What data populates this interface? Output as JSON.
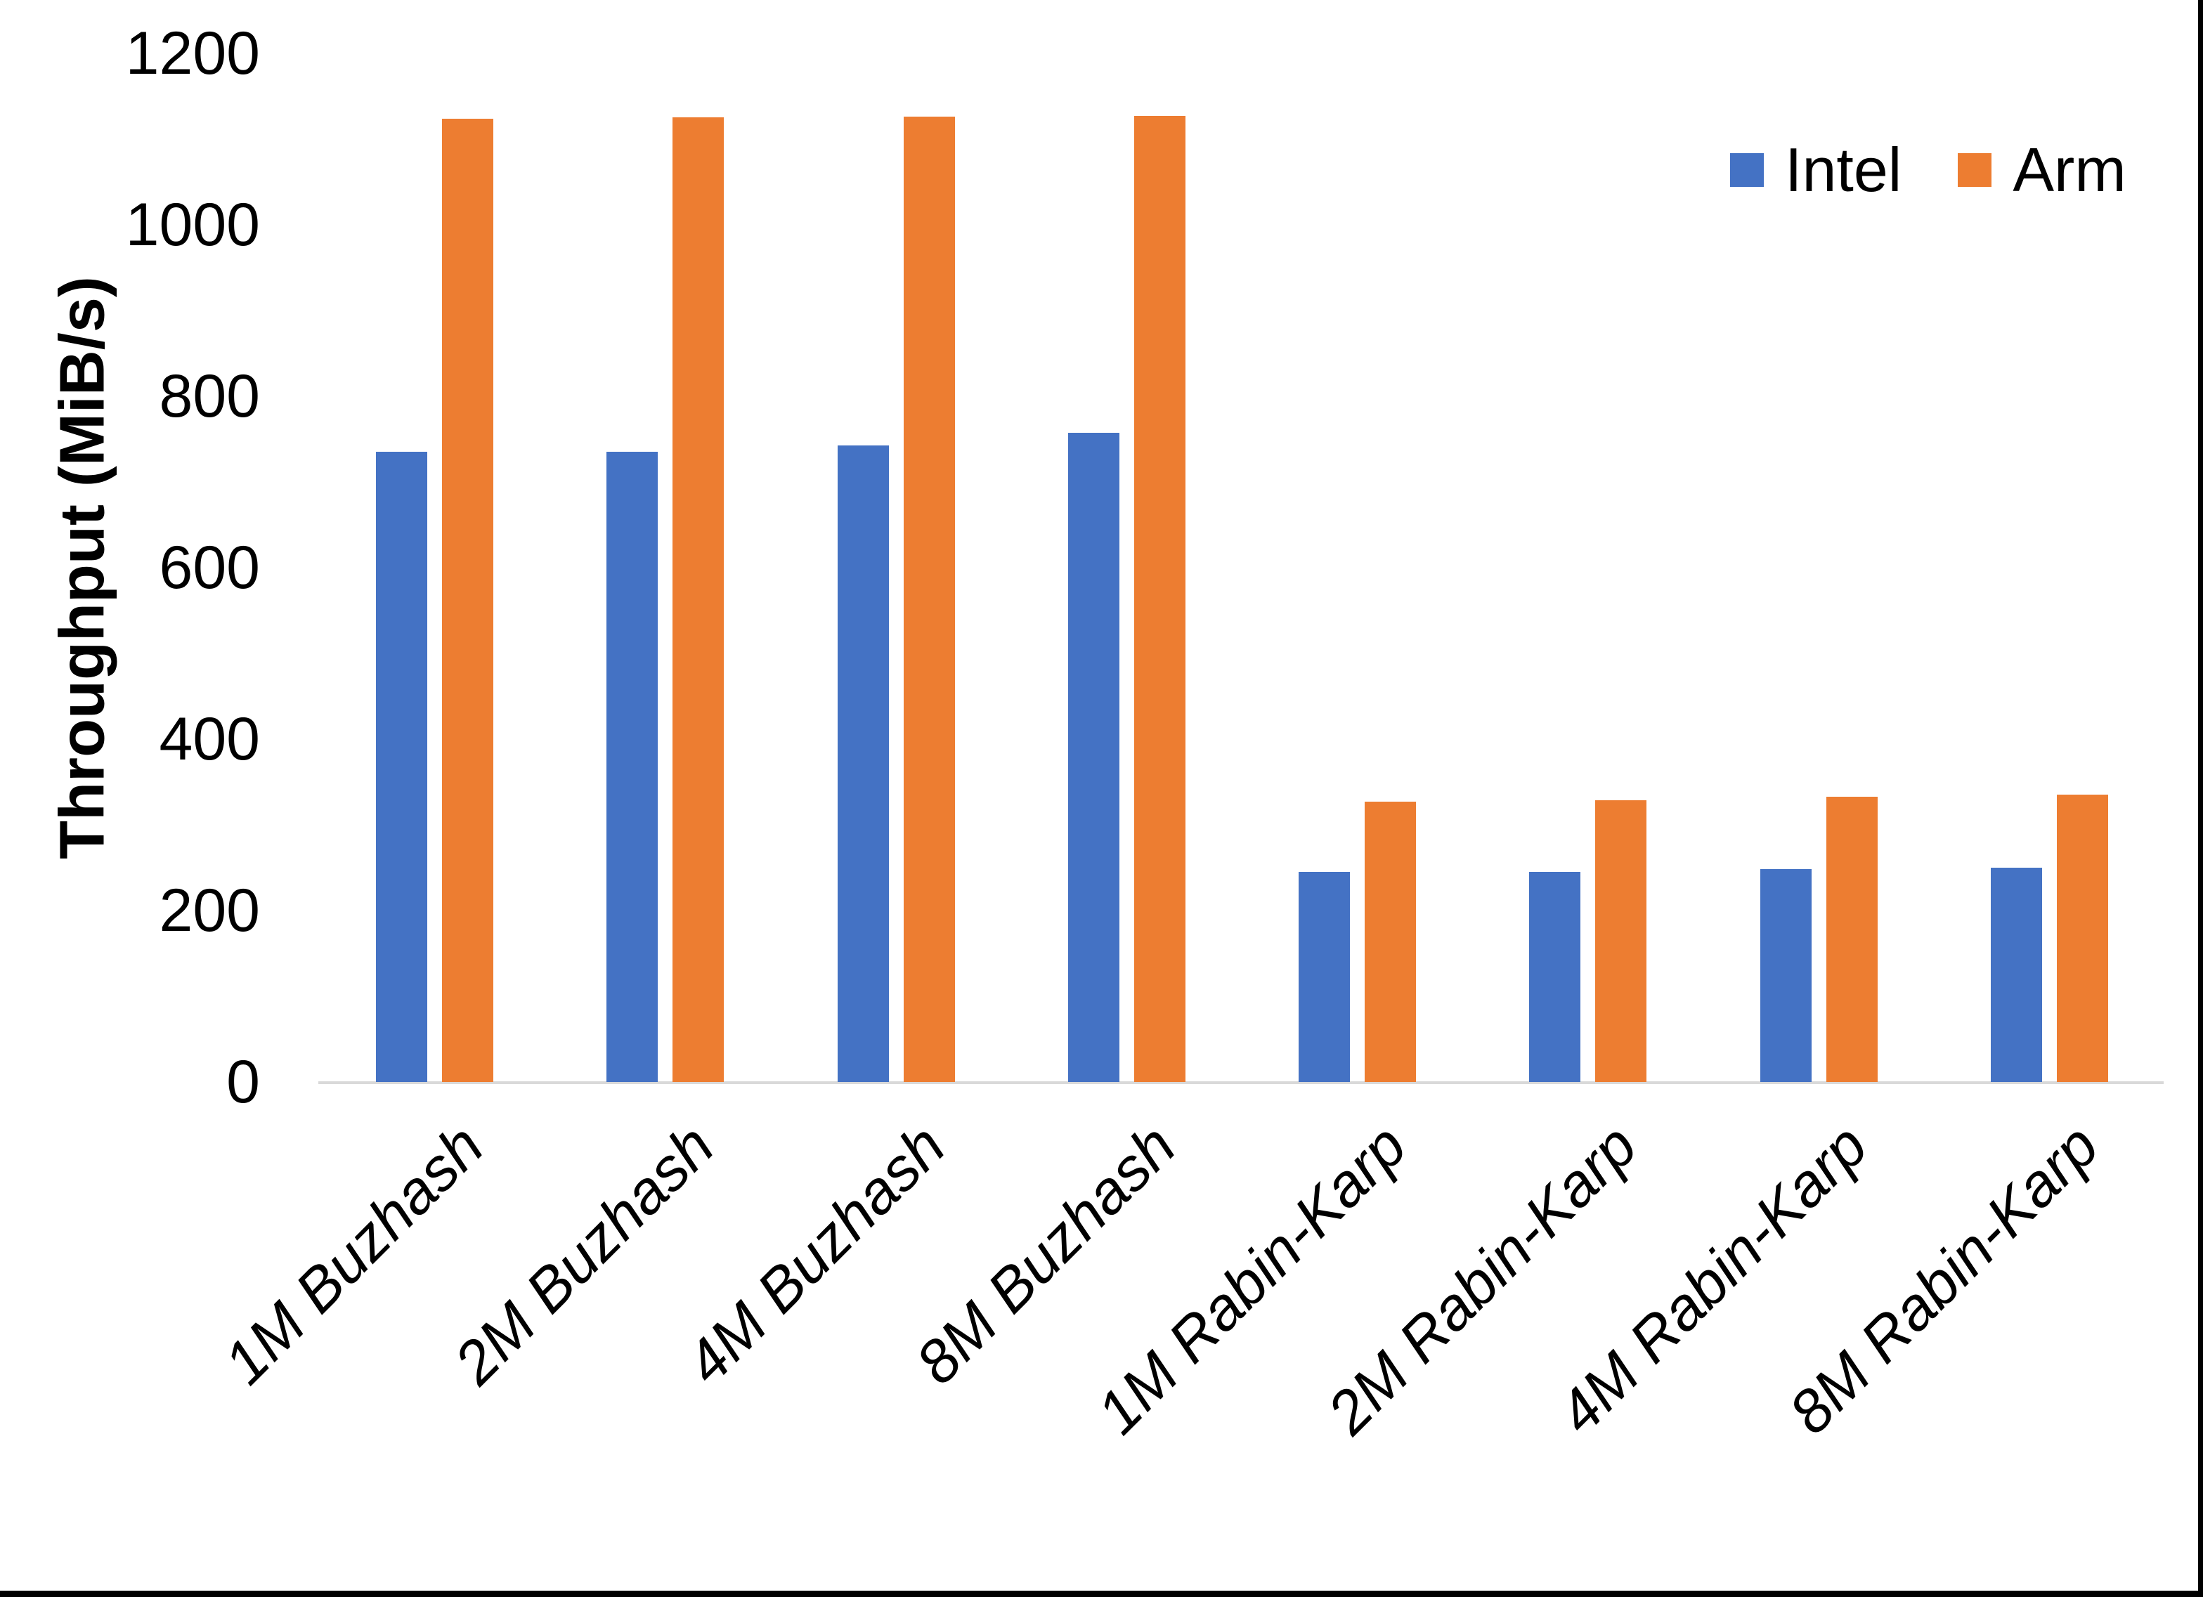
{
  "chart_data": {
    "type": "bar",
    "title": "",
    "xlabel": "",
    "ylabel": "Throughput (MiB/s)",
    "ylim": [
      0,
      1200
    ],
    "yticks": [
      0,
      200,
      400,
      600,
      800,
      1000,
      1200
    ],
    "grid": false,
    "legend_position": "top-right",
    "categories": [
      "1M Buzhash",
      "2M Buzhash",
      "4M Buzhash",
      "8M Buzhash",
      "1M Rabin-Karp",
      "2M Rabin-Karp",
      "4M Rabin-Karp",
      "8M Rabin-Karp"
    ],
    "series": [
      {
        "name": "Intel",
        "color": "#4472C4",
        "values": [
          735,
          735,
          743,
          757,
          245,
          245,
          248,
          250
        ]
      },
      {
        "name": "Arm",
        "color": "#ED7D31",
        "values": [
          1124,
          1125,
          1126,
          1127,
          327,
          329,
          333,
          335
        ]
      }
    ],
    "axis_line_color": "#D9D9D9",
    "text_color": "#000000"
  }
}
